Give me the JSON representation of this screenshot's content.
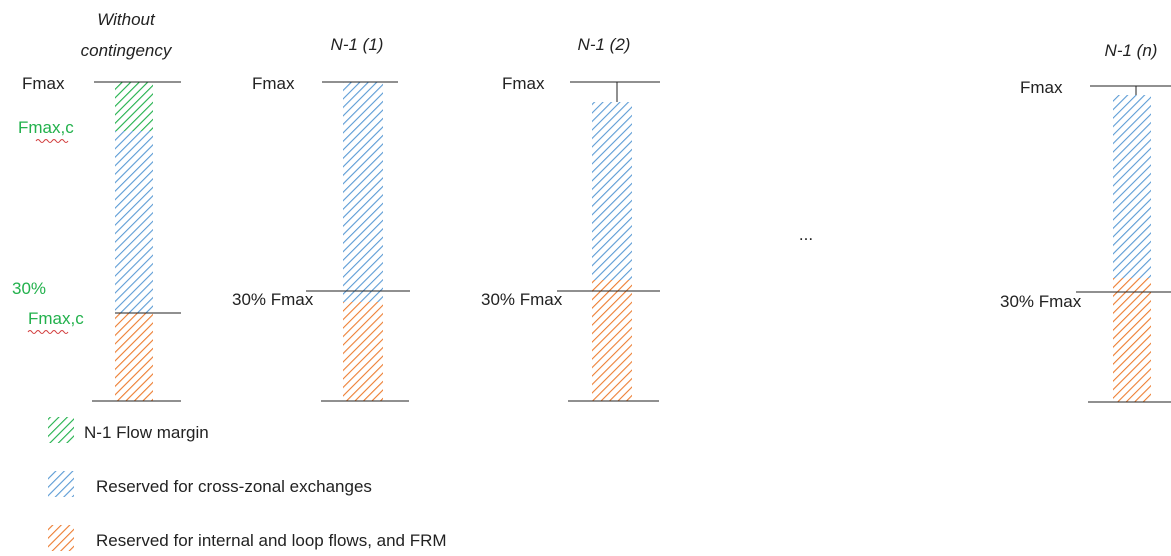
{
  "colors": {
    "green": "#22b14c",
    "blue": "#5b9bd5",
    "orange": "#ed7d31",
    "line": "#222222",
    "squiggle": "#d23b3b"
  },
  "columns": [
    {
      "title_lines": [
        "Without",
        "contingency"
      ],
      "top_label": "Fmax",
      "top_label_color": "#222222",
      "second_label_lines": [
        "Fmax,c"
      ],
      "bottom_label_lines": [
        "30%",
        "Fmax,c"
      ],
      "segments": [
        "green",
        "blue",
        "orange"
      ]
    },
    {
      "title_lines": [
        "N-1 (1)"
      ],
      "top_label": "Fmax",
      "bottom_label_lines": [
        "30% Fmax"
      ],
      "segments": [
        "blue",
        "orange"
      ]
    },
    {
      "title_lines": [
        "N-1 (2)"
      ],
      "top_label": "Fmax",
      "bottom_label_lines": [
        "30% Fmax"
      ],
      "segments": [
        "blue",
        "orange"
      ]
    },
    {
      "title_lines": [
        "N-1 (n)"
      ],
      "top_label": "Fmax",
      "bottom_label_lines": [
        "30% Fmax"
      ],
      "segments": [
        "blue",
        "orange"
      ]
    }
  ],
  "ellipsis": "...",
  "legend": [
    {
      "color": "green",
      "label": "N-1 Flow margin"
    },
    {
      "color": "blue",
      "label": "Reserved for cross-zonal exchanges"
    },
    {
      "color": "orange",
      "label": "Reserved for internal and loop flows, and FRM"
    }
  ]
}
